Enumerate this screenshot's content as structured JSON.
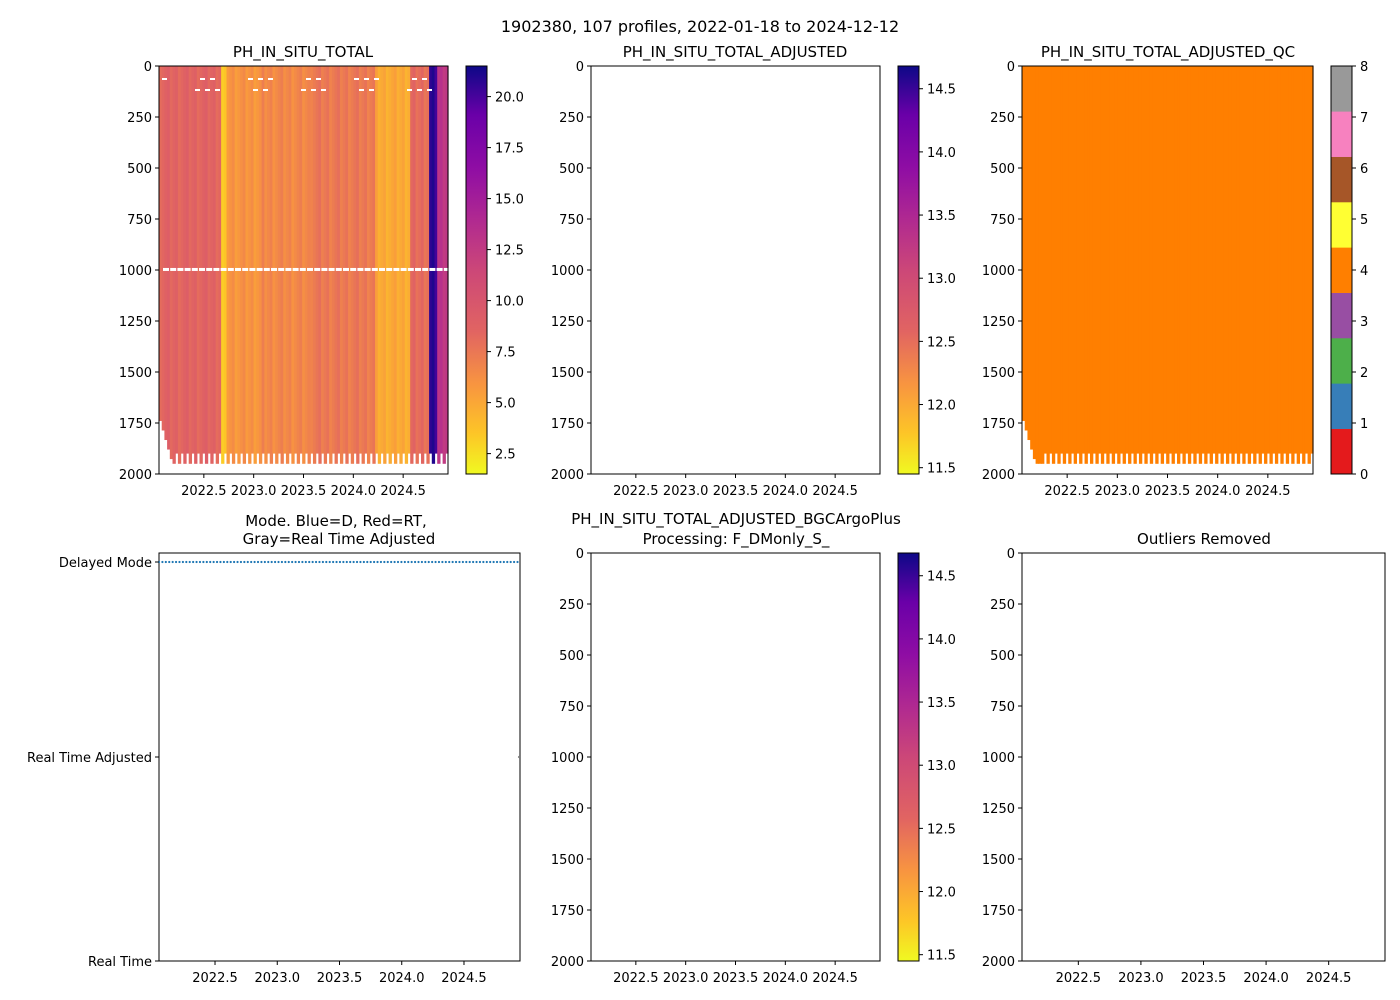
{
  "suptitle": "1902380, 107 profiles, 2022-01-18 to 2024-12-12",
  "depth_ticks": [
    "0",
    "250",
    "500",
    "750",
    "1000",
    "1250",
    "1500",
    "1750",
    "2000"
  ],
  "year_ticks": [
    "2022.5",
    "2023.0",
    "2023.5",
    "2024.0",
    "2024.5"
  ],
  "chart_data": [
    {
      "id": "ph_raw",
      "type": "heatmap",
      "title": "PH_IN_SITU_TOTAL",
      "xlim": [
        2022.05,
        2024.95
      ],
      "ylim": [
        2000,
        0
      ],
      "ylabel": "",
      "colormap": "plasma_r",
      "colorbar": {
        "range": [
          1.5,
          21.5
        ],
        "ticks": [
          "2.5",
          "5.0",
          "7.5",
          "10.0",
          "12.5",
          "15.0",
          "17.5",
          "20.0"
        ]
      },
      "column_segments": [
        {
          "x": [
            2022.05,
            2022.68
          ],
          "value": 8.6
        },
        {
          "x": [
            2022.68,
            2022.73
          ],
          "value": 3.0
        },
        {
          "x": [
            2022.73,
            2023.08
          ],
          "value": 6.0
        },
        {
          "x": [
            2023.08,
            2023.58
          ],
          "value": 6.6
        },
        {
          "x": [
            2023.58,
            2024.22
          ],
          "value": 7.4
        },
        {
          "x": [
            2024.22,
            2024.57
          ],
          "value": 4.9
        },
        {
          "x": [
            2024.57,
            2024.77
          ],
          "value": 8.1
        },
        {
          "x": [
            2024.77,
            2024.85
          ],
          "value": 20.5
        },
        {
          "x": [
            2024.85,
            2024.95
          ],
          "value": 13.0
        }
      ],
      "missing_band_depth": 990
    },
    {
      "id": "ph_adjusted",
      "type": "heatmap",
      "title": "PH_IN_SITU_TOTAL_ADJUSTED",
      "xlim": [
        2022.05,
        2024.95
      ],
      "ylim": [
        2000,
        0
      ],
      "colormap": "plasma_r",
      "colorbar": {
        "range": [
          11.45,
          14.68
        ],
        "ticks": [
          "11.5",
          "12.0",
          "12.5",
          "13.0",
          "13.5",
          "14.0",
          "14.5"
        ]
      },
      "values": []
    },
    {
      "id": "ph_adjusted_qc",
      "type": "heatmap",
      "title": "PH_IN_SITU_TOTAL_ADJUSTED_QC",
      "xlim": [
        2022.05,
        2024.95
      ],
      "ylim": [
        2000,
        0
      ],
      "fill_qc_flag": 4,
      "colorbar": {
        "range": [
          0,
          8
        ],
        "ticks": [
          "0",
          "1",
          "2",
          "3",
          "4",
          "5",
          "6",
          "7",
          "8"
        ],
        "flag_colors": [
          "#e41a1c",
          "#377eb8",
          "#4daf4a",
          "#984ea3",
          "#ff7f00",
          "#ffff33",
          "#a65628",
          "#f781bf",
          "#999999"
        ]
      }
    },
    {
      "id": "mode",
      "type": "scatter",
      "title": "Mode. Blue=D, Red=RT,",
      "subtitle": "Gray=Real Time Adjusted",
      "xlim": [
        2022.05,
        2024.95
      ],
      "ylim": [
        0,
        2
      ],
      "y_tick_labels": [
        "Real Time",
        "Real Time Adjusted",
        "Delayed Mode"
      ],
      "year_ticks": [
        "2022.5",
        "2023.0",
        "2023.5",
        "2024.0",
        "2024.5"
      ],
      "series": [
        {
          "name": "Delayed Mode",
          "color": "#1f77b4",
          "y": 2,
          "n_points": 106,
          "x_range": [
            2022.05,
            2024.93
          ]
        },
        {
          "name": "Real Time Adjusted",
          "color": "#888888",
          "y": 1,
          "x": [
            2024.95
          ]
        }
      ]
    },
    {
      "id": "ph_bgcargoplus",
      "type": "heatmap",
      "title": "PH_IN_SITU_TOTAL_ADJUSTED_BGCArgoPlus",
      "subtitle": "Processing: F_DMonly_S_",
      "xlim": [
        2022.05,
        2024.95
      ],
      "ylim": [
        2000,
        0
      ],
      "colormap": "plasma_r",
      "colorbar": {
        "range": [
          11.45,
          14.68
        ],
        "ticks": [
          "11.5",
          "12.0",
          "12.5",
          "13.0",
          "13.5",
          "14.0",
          "14.5"
        ]
      },
      "values": []
    },
    {
      "id": "outliers",
      "type": "scatter",
      "title": "Outliers Removed",
      "xlim": [
        2022.05,
        2024.95
      ],
      "ylim": [
        2000,
        0
      ],
      "values": []
    }
  ]
}
